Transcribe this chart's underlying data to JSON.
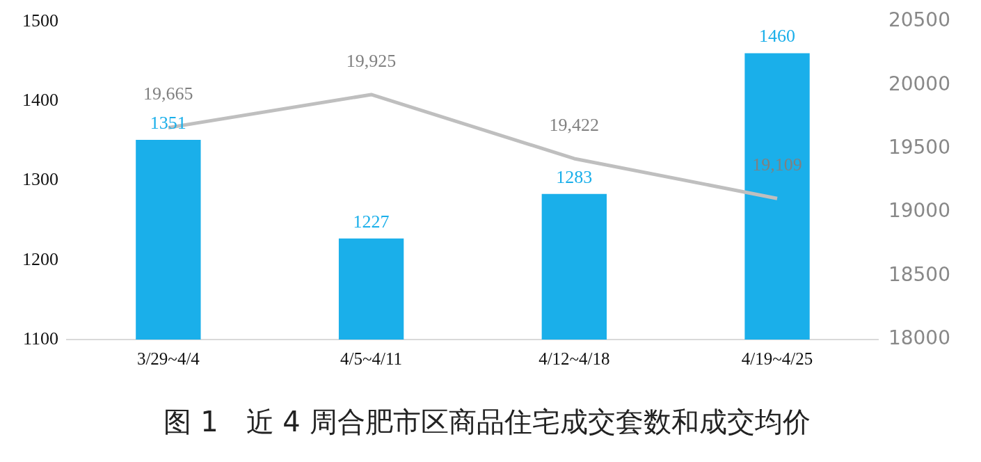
{
  "chart_data": {
    "type": "bar",
    "title": "图 1　近 4 周合肥市区商品住宅成交套数和成交均价",
    "categories": [
      "3/29~4/4",
      "4/5~4/11",
      "4/12~4/18",
      "4/19~4/25"
    ],
    "series": [
      {
        "type": "bar",
        "color": "#1aafea",
        "values": [
          1351,
          1227,
          1283,
          1460
        ],
        "value_labels": [
          "1351",
          "1227",
          "1283",
          "1460"
        ]
      },
      {
        "type": "line",
        "axis": "y2",
        "color": "#bfbfbf",
        "values": [
          19665,
          19925,
          19422,
          19109
        ],
        "value_labels": [
          "19,665",
          "19,925",
          "19,422",
          "19,109"
        ]
      }
    ],
    "ylim": [
      1100,
      1500
    ],
    "yticks": [
      1100,
      1200,
      1300,
      1400,
      1500
    ],
    "y2lim": [
      18000,
      20500
    ],
    "y2ticks": [
      18000,
      18500,
      19000,
      19500,
      20000,
      20500
    ],
    "grid": false,
    "legend": false,
    "marker": "none"
  }
}
